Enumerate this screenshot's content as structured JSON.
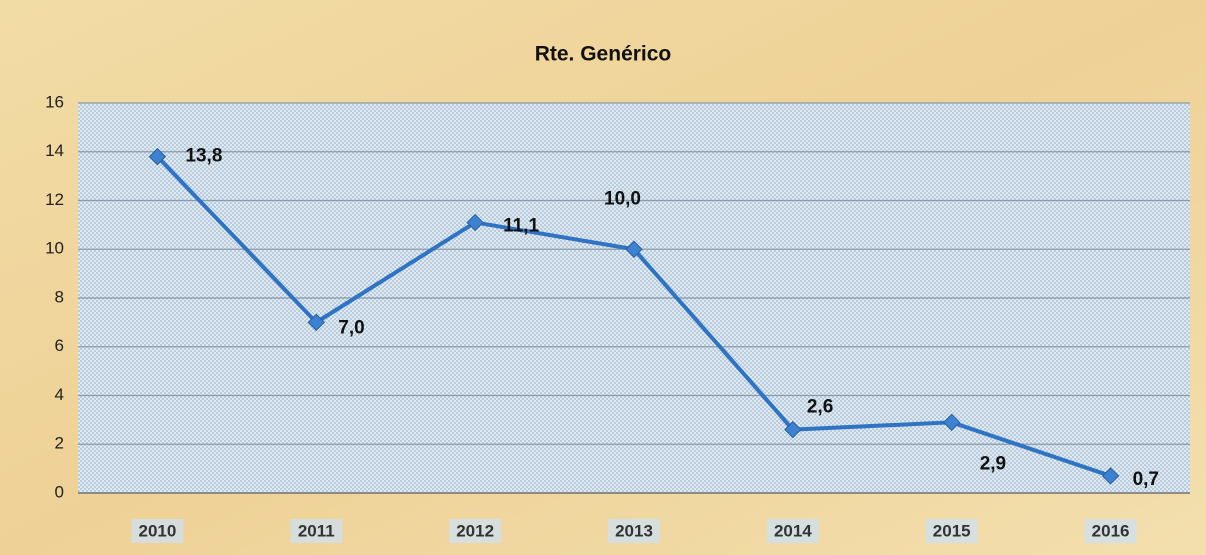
{
  "chart_data": {
    "type": "line",
    "title": "Rte. Genérico",
    "categories": [
      "2010",
      "2011",
      "2012",
      "2013",
      "2014",
      "2015",
      "2016"
    ],
    "values": [
      13.8,
      7.0,
      11.1,
      10.0,
      2.6,
      2.9,
      0.7
    ],
    "value_labels": [
      "13,8",
      "7,0",
      "11,1",
      "10,0",
      "2,6",
      "2,9",
      "0,7"
    ],
    "color": "#2e73c4",
    "ylim": [
      0,
      16
    ],
    "yticks": [
      0,
      2,
      4,
      6,
      8,
      10,
      12,
      14,
      16
    ],
    "grid": true
  }
}
